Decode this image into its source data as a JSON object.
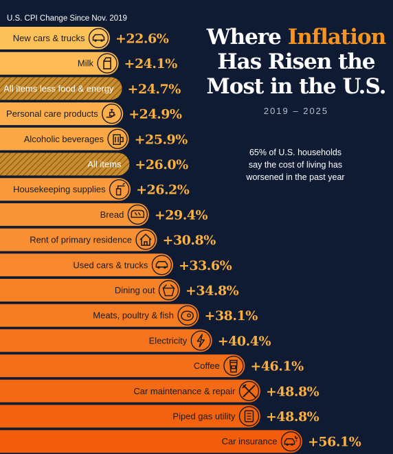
{
  "header": {
    "axis_caption": "U.S. CPI Change Since Nov. 2019",
    "title_prefix": "Where ",
    "title_accent": "Inflation",
    "title_line2": "Has Risen the",
    "title_line3": "Most in the U.S.",
    "subtitle": "2019 – 2025",
    "note_line1": "65% of U.S. households",
    "note_line2": "say the cost of living has",
    "note_line3": "worsened in the past year"
  },
  "colors": {
    "background": "#0f1b33",
    "bar_light": "#fdc15a",
    "bar_dark": "#f25c0a",
    "value_text": "#fbb040",
    "accent": "#f7931e"
  },
  "chart_data": {
    "type": "bar",
    "orientation": "horizontal",
    "title": "Where Inflation Has Risen the Most in the U.S.",
    "subtitle": "2019 – 2025",
    "xlabel": "U.S. CPI Change Since Nov. 2019",
    "unit": "%",
    "categories": [
      "New cars & trucks",
      "Milk",
      "All items less food & energy",
      "Personal care products",
      "Alcoholic beverages",
      "All items",
      "Housekeeping supplies",
      "Bread",
      "Rent of primary residence",
      "Used cars & trucks",
      "Dining out",
      "Meats, poultry & fish",
      "Electricity",
      "Coffee",
      "Car maintenance & repair",
      "Piped gas utility",
      "Car insurance"
    ],
    "values": [
      22.6,
      24.1,
      24.7,
      24.9,
      25.9,
      26.0,
      26.2,
      29.4,
      30.8,
      33.6,
      34.8,
      38.1,
      40.4,
      46.1,
      48.8,
      48.8,
      56.1
    ],
    "value_labels": [
      "+22.6%",
      "+24.1%",
      "+24.7%",
      "+24.9%",
      "+25.9%",
      "+26.0%",
      "+26.2%",
      "+29.4%",
      "+30.8%",
      "+33.6%",
      "+34.8%",
      "+38.1%",
      "+40.4%",
      "+46.1%",
      "+48.8%",
      "+48.8%",
      "+56.1%"
    ],
    "hatched": [
      false,
      false,
      true,
      false,
      false,
      true,
      false,
      false,
      false,
      false,
      false,
      false,
      false,
      false,
      false,
      false,
      false
    ],
    "icons": [
      "car-icon",
      "milk-carton-icon",
      null,
      "hand-soap-icon",
      "beer-mug-icon",
      null,
      "spray-bottle-icon",
      "bread-loaf-icon",
      "house-icon",
      "car-icon",
      "takeout-box-icon",
      "steak-icon",
      "lightning-bolt-icon",
      "coffee-cup-icon",
      "wrench-screwdriver-icon",
      "gas-meter-icon",
      "car-crash-icon"
    ],
    "grid": false,
    "legend": "none"
  }
}
